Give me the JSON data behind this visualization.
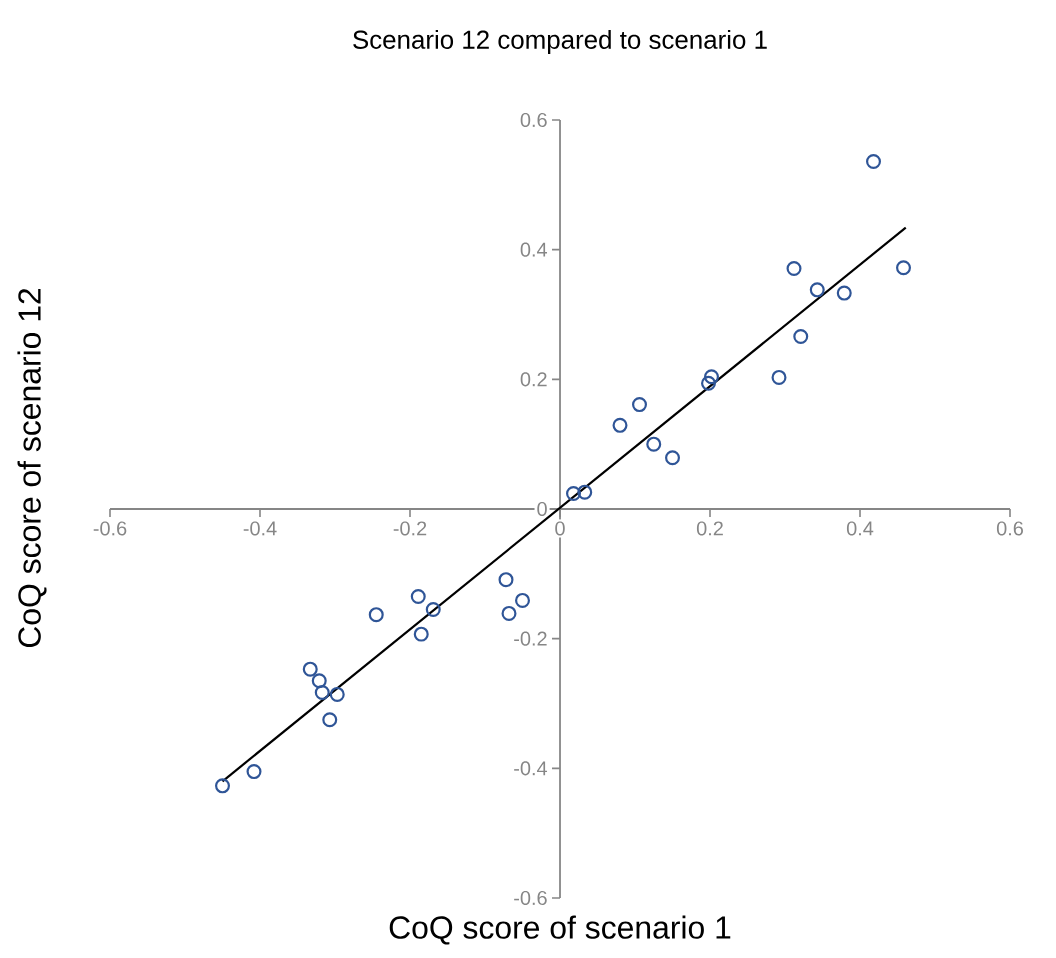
{
  "chart_data": {
    "type": "scatter",
    "title": "Scenario 12 compared to scenario 1",
    "xlabel": "CoQ score of scenario 1",
    "ylabel": "CoQ score of scenario 12",
    "xlim": [
      -0.6,
      0.6
    ],
    "ylim": [
      -0.6,
      0.6
    ],
    "xticks": [
      -0.6,
      -0.4,
      -0.2,
      0,
      0.2,
      0.4,
      0.6
    ],
    "yticks": [
      -0.6,
      -0.4,
      -0.2,
      0,
      0.2,
      0.4,
      0.6
    ],
    "grid": false,
    "marker": "circle",
    "series": [
      {
        "color": "#2f5597",
        "x": [
          0.018,
          0.033,
          0.08,
          0.106,
          0.125,
          0.15,
          0.198,
          0.202,
          0.292,
          0.312,
          0.321,
          0.343,
          0.379,
          0.418,
          0.458,
          -0.45,
          -0.408,
          -0.333,
          -0.321,
          -0.317,
          -0.297,
          -0.307,
          -0.245,
          -0.189,
          -0.169,
          -0.185,
          -0.072,
          -0.068,
          -0.05
        ],
        "values": [
          0.024,
          0.026,
          0.129,
          0.161,
          0.1,
          0.079,
          0.194,
          0.204,
          0.203,
          0.371,
          0.266,
          0.338,
          0.333,
          0.536,
          0.372,
          -0.427,
          -0.405,
          -0.247,
          -0.265,
          -0.283,
          -0.286,
          -0.325,
          -0.163,
          -0.135,
          -0.155,
          -0.193,
          -0.109,
          -0.161,
          -0.141
        ]
      },
      {
        "type": "line",
        "marker": "none",
        "color": "#000000",
        "x": [
          -0.45,
          0.461
        ],
        "values": [
          -0.42,
          0.434
        ]
      }
    ]
  }
}
